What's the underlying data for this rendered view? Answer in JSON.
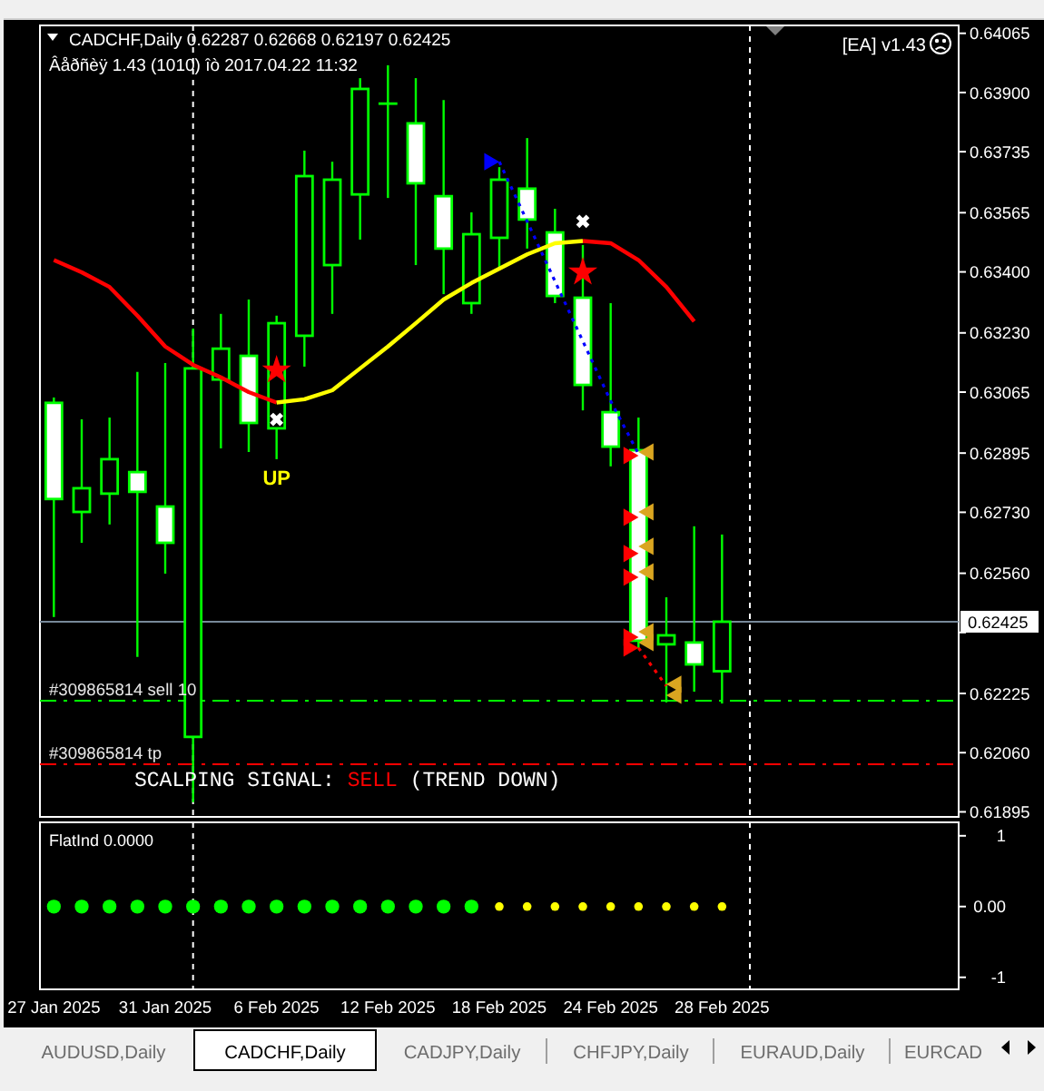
{
  "chart_data": [
    {
      "type": "candlestick",
      "title": "CADCHF,Daily 0.62287 0.62668 0.62197 0.62425",
      "subtitle": "Âåðñèÿ 1.43 (1010) îò 2017.04.22 11:32",
      "categories": [
        null,
        null,
        null,
        null,
        null,
        null,
        null,
        null,
        null,
        null,
        null,
        null,
        null,
        null,
        null,
        null,
        null,
        null,
        null,
        null,
        null,
        null,
        null,
        null,
        null,
        null,
        null,
        null,
        null,
        null,
        null,
        null,
        null
      ],
      "ohlc": [
        [
          0.63035,
          0.6305,
          0.62438,
          0.62767
        ],
        [
          0.62731,
          0.62989,
          0.62645,
          0.62797
        ],
        [
          0.62782,
          0.62994,
          0.62696,
          0.62878
        ],
        [
          0.62842,
          0.63121,
          0.62327,
          0.62787
        ],
        [
          0.62746,
          0.63146,
          0.62559,
          0.62645
        ],
        [
          0.62104,
          0.63242,
          0.61922,
          0.63131
        ],
        [
          0.631,
          0.63283,
          0.62908,
          0.63186
        ],
        [
          0.63166,
          0.63323,
          0.62898,
          0.62979
        ],
        [
          0.62964,
          0.63278,
          0.62878,
          0.63257
        ],
        [
          0.63222,
          0.63738,
          0.63136,
          0.63667
        ],
        [
          0.63419,
          0.63707,
          0.63283,
          0.63657
        ],
        [
          0.63616,
          0.6394,
          0.6349,
          0.6391
        ],
        [
          0.63869,
          0.63976,
          0.63606,
          0.63869
        ],
        [
          0.63814,
          0.6394,
          0.63419,
          0.63647
        ],
        [
          0.63611,
          0.63879,
          0.63338,
          0.63465
        ],
        [
          0.63313,
          0.63566,
          0.63283,
          0.63505
        ],
        [
          0.63495,
          0.63692,
          0.63409,
          0.63657
        ],
        [
          0.63632,
          0.63773,
          0.63465,
          0.63546
        ],
        [
          0.6351,
          0.63576,
          0.63313,
          0.63333
        ],
        [
          0.63328,
          0.63475,
          0.63014,
          0.63085
        ],
        [
          0.63009,
          0.63313,
          0.62858,
          0.62913
        ],
        [
          0.62903,
          0.62994,
          0.62352,
          0.62372
        ],
        [
          0.62362,
          0.62493,
          0.622,
          0.62387
        ],
        [
          0.62367,
          0.62691,
          0.6223,
          0.62306
        ],
        [
          0.62287,
          0.62668,
          0.62197,
          0.62425
        ],
        null,
        null,
        null,
        null,
        null,
        null,
        null,
        null
      ],
      "color": "#00ff00",
      "ylim": [
        0.61881,
        0.64087
      ],
      "yticks": [
        0.64065,
        {
          "value": 0.639,
          "label": "0.63900"
        },
        0.63735,
        0.63565,
        {
          "value": 0.634,
          "label": "0.63400"
        },
        {
          "value": 0.6323,
          "label": "0.63230"
        },
        0.63065,
        0.62895,
        {
          "value": 0.6273,
          "label": "0.62730"
        },
        {
          "value": 0.6256,
          "label": "0.62560"
        },
        {
          "value": 0.62395,
          "label": null
        },
        0.62225,
        {
          "value": 0.6206,
          "label": "0.62060"
        },
        0.61895
      ],
      "tick_labels": "y",
      "series": [
        {
          "type": "line",
          "color": "#ff0000",
          "values": [
            0.63433,
            0.63399,
            0.63358,
            0.63278,
            0.63192,
            0.63141,
            0.63106,
            0.63065,
            0.63036,
            null,
            null,
            null,
            null,
            null,
            null,
            null,
            null,
            null,
            null,
            0.63486,
            0.6348,
            0.63433,
            0.63358,
            0.63262,
            null,
            null,
            null,
            null,
            null,
            null,
            null,
            null,
            null
          ]
        },
        {
          "type": "line",
          "color": "#ffff00",
          "values": [
            null,
            null,
            null,
            null,
            null,
            null,
            null,
            null,
            0.63036,
            0.63045,
            0.6307,
            0.63131,
            0.63192,
            0.63257,
            0.63323,
            0.63369,
            0.63409,
            0.63449,
            0.6348,
            0.63486,
            null,
            null,
            null,
            null,
            null,
            null,
            null,
            null,
            null,
            null,
            null,
            null,
            null
          ]
        },
        {
          "type": "line",
          "color": "#0000ff",
          "line_style": "dotted",
          "values": [
            null,
            null,
            null,
            null,
            null,
            null,
            null,
            null,
            null,
            null,
            null,
            null,
            null,
            null,
            null,
            null,
            0.63707,
            0.63541,
            0.63374,
            0.63207,
            0.6304,
            0.62893,
            null,
            null,
            null,
            null,
            null,
            null,
            null,
            null,
            null,
            null,
            null
          ]
        },
        {
          "type": "line",
          "color": "#ff0000",
          "line_style": "dotted",
          "values": [
            null,
            null,
            null,
            null,
            null,
            null,
            null,
            null,
            null,
            null,
            null,
            null,
            null,
            null,
            null,
            null,
            null,
            null,
            null,
            null,
            null,
            0.62352,
            0.62246,
            null,
            null,
            null,
            null,
            null,
            null,
            null,
            null,
            null,
            null
          ]
        },
        {
          "type": "scatter",
          "color": "#ff0000",
          "marker": "star",
          "values": [
            null,
            null,
            null,
            null,
            null,
            null,
            null,
            null,
            0.63126,
            null,
            null,
            null,
            null,
            null,
            null,
            null,
            null,
            null,
            null,
            0.63399,
            null,
            null,
            null,
            null,
            null,
            null,
            null,
            null,
            null,
            null,
            null,
            null,
            null
          ]
        },
        {
          "type": "scatter",
          "color": "#ffffff",
          "marker": "cross",
          "values": [
            null,
            null,
            null,
            null,
            null,
            null,
            null,
            null,
            0.62989,
            null,
            null,
            null,
            null,
            null,
            null,
            null,
            null,
            null,
            null,
            0.63541,
            null,
            null,
            null,
            null,
            null,
            null,
            null,
            null,
            null,
            null,
            null,
            null,
            null
          ]
        },
        {
          "type": "scatter",
          "color": "#ff0000",
          "marker": "triangle",
          "values": [
            null,
            null,
            null,
            null,
            null,
            null,
            null,
            null,
            null,
            null,
            null,
            null,
            null,
            null,
            null,
            null,
            null,
            null,
            null,
            null,
            null,
            0.62888,
            null,
            null,
            null,
            null,
            null,
            null,
            null,
            null,
            null,
            null,
            null
          ]
        },
        {
          "type": "scatter",
          "color": "#daa520",
          "marker": "triangle",
          "values": [
            null,
            null,
            null,
            null,
            null,
            null,
            null,
            null,
            null,
            null,
            null,
            null,
            null,
            null,
            null,
            null,
            null,
            null,
            null,
            null,
            null,
            0.62898,
            0.62251,
            null,
            null,
            null,
            null,
            null,
            null,
            null,
            null,
            null,
            null
          ]
        },
        {
          "type": "scatter",
          "color": "#ff0000",
          "marker": "triangle",
          "values": [
            null,
            null,
            null,
            null,
            null,
            null,
            null,
            null,
            null,
            null,
            null,
            null,
            null,
            null,
            null,
            null,
            null,
            null,
            null,
            null,
            null,
            0.62716,
            null,
            null,
            null,
            null,
            null,
            null,
            null,
            null,
            null,
            null,
            null
          ]
        },
        {
          "type": "scatter",
          "color": "#daa520",
          "marker": "triangle",
          "values": [
            null,
            null,
            null,
            null,
            null,
            null,
            null,
            null,
            null,
            null,
            null,
            null,
            null,
            null,
            null,
            null,
            null,
            null,
            null,
            null,
            null,
            0.62731,
            0.6222,
            null,
            null,
            null,
            null,
            null,
            null,
            null,
            null,
            null,
            null
          ]
        },
        {
          "type": "scatter",
          "color": "#ff0000",
          "marker": "triangle",
          "values": [
            null,
            null,
            null,
            null,
            null,
            null,
            null,
            null,
            null,
            null,
            null,
            null,
            null,
            null,
            null,
            null,
            null,
            null,
            null,
            null,
            null,
            0.62615,
            null,
            null,
            null,
            null,
            null,
            null,
            null,
            null,
            null,
            null,
            null
          ]
        },
        {
          "type": "scatter",
          "color": "#daa520",
          "marker": "triangle",
          "values": [
            null,
            null,
            null,
            null,
            null,
            null,
            null,
            null,
            null,
            null,
            null,
            null,
            null,
            null,
            null,
            null,
            null,
            null,
            null,
            null,
            null,
            0.62635,
            null,
            null,
            null,
            null,
            null,
            null,
            null,
            null,
            null,
            null,
            null
          ]
        },
        {
          "type": "scatter",
          "color": "#ff0000",
          "marker": "triangle",
          "values": [
            null,
            null,
            null,
            null,
            null,
            null,
            null,
            null,
            null,
            null,
            null,
            null,
            null,
            null,
            null,
            null,
            null,
            null,
            null,
            null,
            null,
            0.62549,
            null,
            null,
            null,
            null,
            null,
            null,
            null,
            null,
            null,
            null,
            null
          ]
        },
        {
          "type": "scatter",
          "color": "#daa520",
          "marker": "triangle",
          "values": [
            null,
            null,
            null,
            null,
            null,
            null,
            null,
            null,
            null,
            null,
            null,
            null,
            null,
            null,
            null,
            null,
            null,
            null,
            null,
            null,
            null,
            0.62564,
            null,
            null,
            null,
            null,
            null,
            null,
            null,
            null,
            null,
            null,
            null
          ]
        },
        {
          "type": "scatter",
          "color": "#ff0000",
          "marker": "triangle",
          "values": [
            null,
            null,
            null,
            null,
            null,
            null,
            null,
            null,
            null,
            null,
            null,
            null,
            null,
            null,
            null,
            null,
            null,
            null,
            null,
            null,
            null,
            0.62382,
            null,
            null,
            null,
            null,
            null,
            null,
            null,
            null,
            null,
            null,
            null
          ]
        },
        {
          "type": "scatter",
          "color": "#daa520",
          "marker": "triangle",
          "values": [
            null,
            null,
            null,
            null,
            null,
            null,
            null,
            null,
            null,
            null,
            null,
            null,
            null,
            null,
            null,
            null,
            null,
            null,
            null,
            null,
            null,
            0.62397,
            null,
            null,
            null,
            null,
            null,
            null,
            null,
            null,
            null,
            null,
            null
          ]
        },
        {
          "type": "scatter",
          "color": "#ff0000",
          "marker": "triangle",
          "values": [
            null,
            null,
            null,
            null,
            null,
            null,
            null,
            null,
            null,
            null,
            null,
            null,
            null,
            null,
            null,
            null,
            null,
            null,
            null,
            null,
            null,
            0.62352,
            null,
            null,
            null,
            null,
            null,
            null,
            null,
            null,
            null,
            null,
            null
          ]
        },
        {
          "type": "scatter",
          "color": "#daa520",
          "marker": "triangle",
          "values": [
            null,
            null,
            null,
            null,
            null,
            null,
            null,
            null,
            null,
            null,
            null,
            null,
            null,
            null,
            null,
            null,
            null,
            null,
            null,
            null,
            null,
            0.62367,
            null,
            null,
            null,
            null,
            null,
            null,
            null,
            null,
            null,
            null,
            null
          ]
        },
        {
          "type": "scatter",
          "color": "#0000ff",
          "marker": "triangle",
          "values": [
            null,
            null,
            null,
            null,
            null,
            null,
            null,
            null,
            null,
            null,
            null,
            null,
            null,
            null,
            null,
            null,
            0.63707,
            null,
            null,
            null,
            null,
            null,
            null,
            null,
            null,
            null,
            null,
            null,
            null,
            null,
            null,
            null,
            null
          ]
        }
      ],
      "ref_lines": [
        {
          "axis": "y",
          "value": 0.62425,
          "label": "0.62425",
          "color": "#778899"
        },
        {
          "axis": "y",
          "value": 0.62205,
          "label": "#309865814 sell 10",
          "color": "#00ff00",
          "line_style": "dashed"
        },
        {
          "axis": "y",
          "value": 0.62028,
          "label": "#309865814 tp",
          "color": "#ff0000",
          "line_style": "dashed"
        }
      ],
      "annotations": [
        "[EA] v1.43",
        "UP",
        "SCALPING SIGNAL: SELL (TREND DOWN)"
      ]
    },
    {
      "type": "scatter",
      "title": "FlatInd 0.0000",
      "categories": [
        "27 Jan 2025",
        null,
        null,
        null,
        "31 Jan 2025",
        null,
        null,
        null,
        "6 Feb 2025",
        null,
        null,
        null,
        "12 Feb 2025",
        null,
        null,
        null,
        "18 Feb 2025",
        null,
        null,
        null,
        "24 Feb 2025",
        null,
        null,
        null,
        "28 Feb 2025",
        null,
        null,
        null,
        null,
        null,
        null,
        null,
        null
      ],
      "series": [
        {
          "color": "#00ff00",
          "values": [
            0,
            0,
            0,
            0,
            0,
            0,
            0,
            0,
            0,
            0,
            0,
            0,
            0,
            0,
            0,
            0,
            null,
            null,
            null,
            null,
            null,
            null,
            null,
            null,
            null,
            null,
            null,
            null,
            null,
            null,
            null,
            null,
            null
          ]
        },
        {
          "color": "#ffff00",
          "values": [
            null,
            null,
            null,
            null,
            null,
            null,
            null,
            null,
            null,
            null,
            null,
            null,
            null,
            null,
            null,
            null,
            0,
            0,
            0,
            0,
            0,
            0,
            0,
            0,
            0,
            null,
            null,
            null,
            null,
            null,
            null,
            null,
            null
          ]
        }
      ],
      "marker": "circle",
      "ylim": [
        -1.17,
        1.19
      ],
      "yticks": [
        {
          "value": 1,
          "label": "1"
        },
        {
          "value": 0,
          "label": "0.00"
        },
        {
          "value": -1,
          "label": "-1"
        }
      ]
    },
    {
      "type": "other",
      "annotations": [
        "AUDUSD,Daily",
        "CADCHF,Daily",
        "CADJPY,Daily",
        "CHFJPY,Daily",
        "EURAUD,Daily",
        "EURCAD"
      ]
    }
  ]
}
